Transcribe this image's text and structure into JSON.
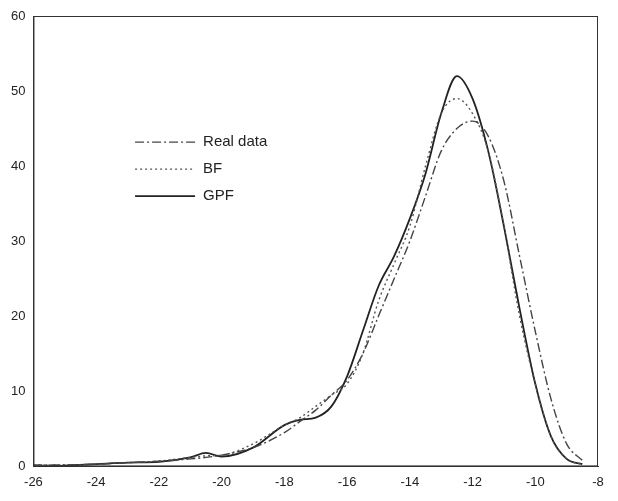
{
  "chart_data": {
    "type": "line",
    "x": [
      -26,
      -25,
      -24,
      -23,
      -22,
      -21,
      -20.5,
      -20,
      -19,
      -18,
      -17.5,
      -17,
      -16.5,
      -16,
      -15.5,
      -15,
      -14.5,
      -14,
      -13.5,
      -13,
      -12.5,
      -12,
      -11.5,
      -11,
      -10.5,
      -10,
      -9.5,
      -9,
      -8.5
    ],
    "series": [
      {
        "name": "Real data",
        "color": "#444444",
        "line_style": "dashdot",
        "values": [
          0.2,
          0.2,
          0.3,
          0.5,
          0.7,
          1.0,
          1.2,
          1.5,
          2.5,
          4.5,
          6,
          7.5,
          9.5,
          11.5,
          15,
          20,
          25,
          30,
          36,
          42,
          45,
          46,
          44,
          38,
          28,
          18,
          9,
          3,
          0.8
        ]
      },
      {
        "name": "BF",
        "color": "#555555",
        "line_style": "dotted",
        "values": [
          0.2,
          0.2,
          0.3,
          0.5,
          0.7,
          1.2,
          1.4,
          1.5,
          3,
          5.5,
          6.5,
          8,
          9.5,
          11,
          15,
          22,
          27,
          32,
          40,
          47,
          49,
          47,
          42,
          32,
          20,
          11,
          4,
          1,
          0.3
        ]
      },
      {
        "name": "GPF",
        "color": "#222222",
        "line_style": "solid",
        "values": [
          0,
          0.1,
          0.3,
          0.5,
          0.6,
          1.2,
          1.8,
          1.3,
          2.5,
          5.5,
          6.2,
          6.5,
          8,
          12,
          18,
          24,
          28,
          33,
          39,
          47,
          52,
          49,
          42,
          32,
          21,
          11,
          4,
          1,
          0.3
        ]
      }
    ],
    "xlim": [
      -26,
      -8
    ],
    "xticks": [
      -26,
      -24,
      -22,
      -20,
      -18,
      -16,
      -14,
      -12,
      -10,
      -8
    ],
    "ylim": [
      0,
      60
    ],
    "yticks": [
      0,
      10,
      20,
      30,
      40,
      50,
      60
    ],
    "grid": false,
    "legend": "upper left"
  }
}
